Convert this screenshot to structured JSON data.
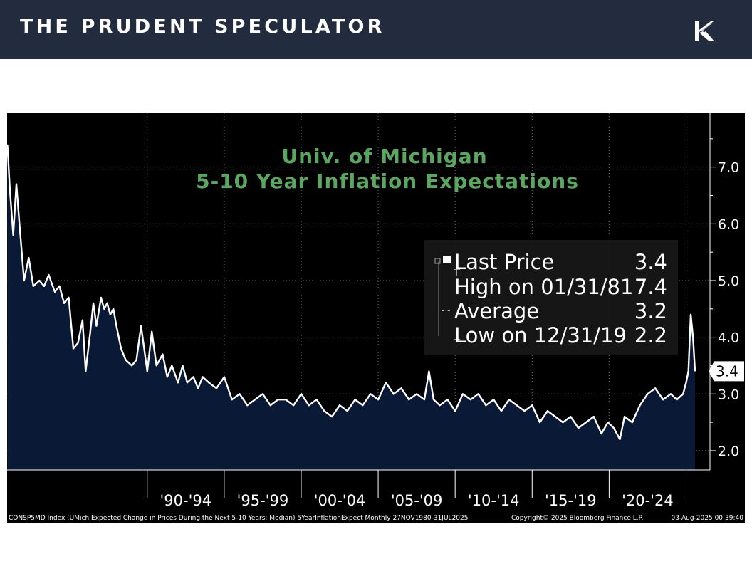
{
  "header": {
    "brand": "THE PRUDENT SPECULATOR",
    "logo_icon": "tps-monogram-logo",
    "background": "#232b3e"
  },
  "chart_data": {
    "type": "area",
    "title": "Univ. of Michigan",
    "subtitle": "5-10 Year Inflation Expectations",
    "title_color": "#5aa85f",
    "fill_color": "#0a1a36",
    "line_color": "#ffffff",
    "y_ticks": [
      "2.0",
      "3.0",
      "4.0",
      "5.0",
      "6.0",
      "7.0"
    ],
    "ylim": [
      1.66,
      7.95
    ],
    "xlim": [
      1980.9,
      2026.55
    ],
    "x_period_labels": [
      "'90-'94",
      "'95-'99",
      "'00-'04",
      "'05-'09",
      "'10-'14",
      "'15-'19",
      "'20-'24"
    ],
    "x_period_starts": [
      1990,
      1995,
      2000,
      2005,
      2010,
      2015,
      2020,
      2025
    ],
    "last_price_marker": "3.4",
    "legend": [
      {
        "label": "Last Price",
        "value": "3.4",
        "icon": "square-icon"
      },
      {
        "label": "High on 01/31/81",
        "value": "7.4",
        "icon": "high-marker-icon"
      },
      {
        "label": "Average",
        "value": "3.2",
        "icon": "average-marker-icon"
      },
      {
        "label": "Low on 12/31/19",
        "value": "2.2",
        "icon": "low-marker-icon"
      }
    ],
    "x": [
      1980.92,
      1981.08,
      1981.3,
      1981.5,
      1981.7,
      1982.0,
      1982.3,
      1982.6,
      1983.0,
      1983.3,
      1983.6,
      1984.0,
      1984.3,
      1984.6,
      1984.9,
      1985.2,
      1985.5,
      1985.8,
      1986.0,
      1986.3,
      1986.5,
      1986.7,
      1987.0,
      1987.2,
      1987.4,
      1987.6,
      1987.8,
      1988.0,
      1988.3,
      1988.6,
      1989.0,
      1989.3,
      1989.6,
      1990.0,
      1990.3,
      1990.6,
      1991.0,
      1991.3,
      1991.6,
      1992.0,
      1992.3,
      1992.6,
      1993.0,
      1993.3,
      1993.6,
      1994.0,
      1994.5,
      1995.0,
      1995.5,
      1996.0,
      1996.5,
      1997.0,
      1997.5,
      1998.0,
      1998.5,
      1999.0,
      1999.5,
      2000.0,
      2000.5,
      2001.0,
      2001.5,
      2002.0,
      2002.5,
      2003.0,
      2003.5,
      2004.0,
      2004.5,
      2005.0,
      2005.5,
      2006.0,
      2006.5,
      2007.0,
      2007.5,
      2008.0,
      2008.3,
      2008.6,
      2009.0,
      2009.5,
      2010.0,
      2010.5,
      2011.0,
      2011.5,
      2012.0,
      2012.5,
      2013.0,
      2013.5,
      2014.0,
      2014.5,
      2015.0,
      2015.5,
      2016.0,
      2016.5,
      2017.0,
      2017.5,
      2018.0,
      2018.5,
      2019.0,
      2019.5,
      2019.92,
      2020.3,
      2020.7,
      2021.0,
      2021.5,
      2022.0,
      2022.5,
      2023.0,
      2023.5,
      2024.0,
      2024.4,
      2024.8,
      2025.0,
      2025.15,
      2025.3,
      2025.45,
      2025.58
    ],
    "values": [
      7.4,
      6.6,
      5.8,
      6.7,
      6.0,
      5.0,
      5.4,
      4.9,
      5.0,
      4.9,
      5.1,
      4.8,
      4.9,
      4.6,
      4.7,
      3.8,
      3.9,
      4.3,
      3.4,
      4.1,
      4.6,
      4.2,
      4.7,
      4.5,
      4.6,
      4.4,
      4.5,
      4.2,
      3.8,
      3.6,
      3.5,
      3.6,
      4.2,
      3.4,
      4.1,
      3.5,
      3.7,
      3.3,
      3.5,
      3.2,
      3.5,
      3.2,
      3.3,
      3.1,
      3.3,
      3.2,
      3.1,
      3.3,
      2.9,
      3.0,
      2.8,
      2.9,
      3.0,
      2.8,
      2.9,
      2.9,
      2.8,
      3.0,
      2.8,
      2.9,
      2.7,
      2.6,
      2.8,
      2.7,
      2.9,
      2.8,
      3.0,
      2.9,
      3.2,
      3.0,
      3.1,
      2.9,
      3.0,
      2.9,
      3.4,
      2.9,
      2.8,
      2.9,
      2.7,
      3.0,
      2.9,
      3.0,
      2.8,
      2.9,
      2.7,
      2.9,
      2.8,
      2.7,
      2.8,
      2.5,
      2.7,
      2.6,
      2.5,
      2.6,
      2.4,
      2.5,
      2.6,
      2.3,
      2.5,
      2.4,
      2.2,
      2.6,
      2.5,
      2.8,
      3.0,
      3.1,
      2.9,
      3.0,
      2.9,
      3.0,
      3.2,
      3.4,
      4.4,
      4.0,
      3.4
    ]
  },
  "footer": {
    "source": "CONSP5MD Index (UMich Expected Change in Prices During the Next 5-10 Years: Median) 5YearInflationExpect  Monthly 27NOV1980-31JUL2025",
    "copyright": "Copyright© 2025 Bloomberg Finance L.P.",
    "timestamp": "03-Aug-2025 00:39:40"
  }
}
